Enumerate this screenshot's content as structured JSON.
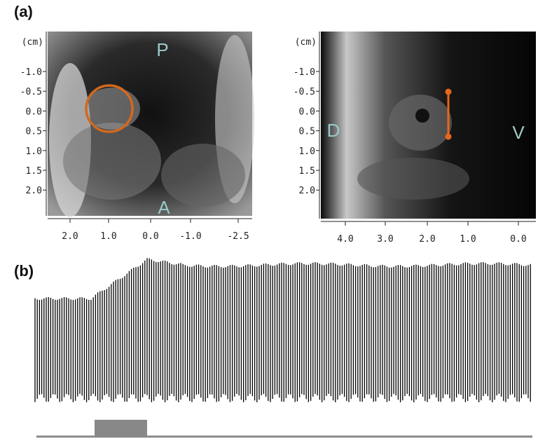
{
  "panel_a": {
    "label": "(a)",
    "left_image": {
      "unit": "(cm)",
      "y_ticks": [
        "-1.0",
        "-0.5",
        "0.0",
        "0.5",
        "1.0",
        "1.5",
        "2.0"
      ],
      "x_ticks": [
        "2.0",
        "1.0",
        "0.0",
        "-1.0",
        "-2.5"
      ],
      "markers": [
        "P",
        "A"
      ]
    },
    "right_image": {
      "unit": "(cm)",
      "y_ticks": [
        "-1.0",
        "-0.5",
        "0.0",
        "0.5",
        "1.0",
        "1.5",
        "2.0"
      ],
      "x_ticks": [
        "4.0",
        "3.0",
        "2.0",
        "1.0",
        "0.0"
      ],
      "markers": [
        "D",
        "V"
      ]
    }
  },
  "panel_b": {
    "label": "(b)"
  }
}
